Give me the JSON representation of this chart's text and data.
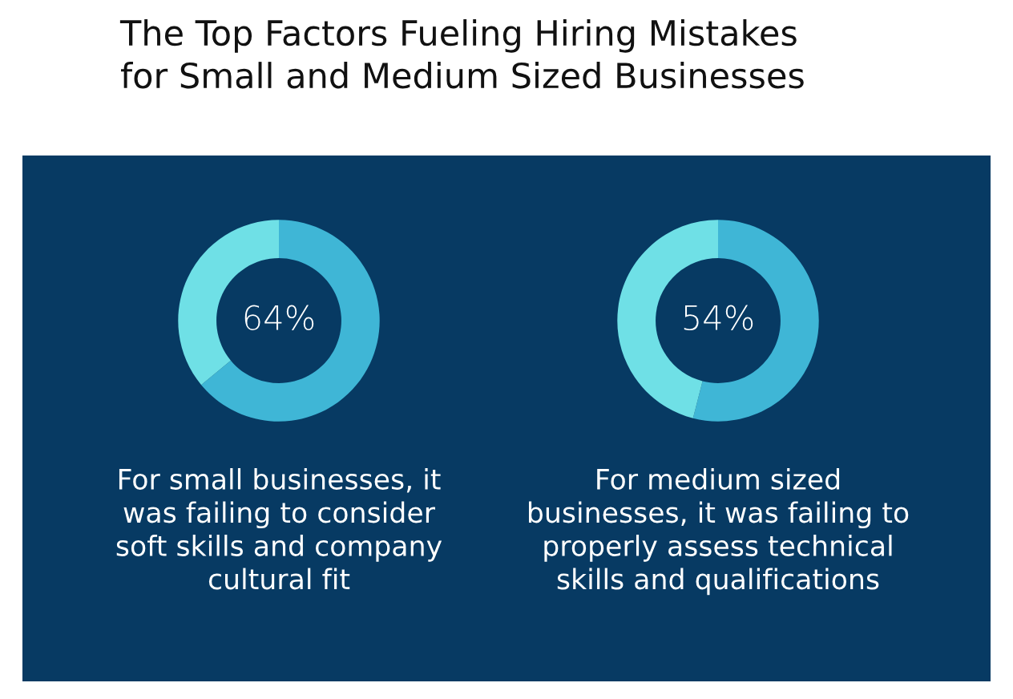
{
  "chart_data": [
    {
      "type": "donut",
      "title": "The Top Factors Fueling Hiring Mistakes\nfor Small and Medium Sized Businesses",
      "categories": [
        null,
        null
      ],
      "values": [
        64,
        36
      ],
      "colors": [
        "#3fb6d6",
        "#6fe0e6"
      ],
      "value_labels": [
        "64%",
        null
      ],
      "annotations": [
        "For small businesses, it\nwas failing to consider\nsoft skills and company\ncultural fit"
      ]
    },
    {
      "type": "donut",
      "categories": [
        null,
        null
      ],
      "values": [
        54,
        46
      ],
      "colors": [
        "#3fb6d6",
        "#6fe0e6"
      ],
      "value_labels": [
        "54%",
        null
      ],
      "annotations": [
        "For medium sized\nbusinesses, it was failing to\nproperly assess technical\nskills and qualifications"
      ]
    }
  ]
}
